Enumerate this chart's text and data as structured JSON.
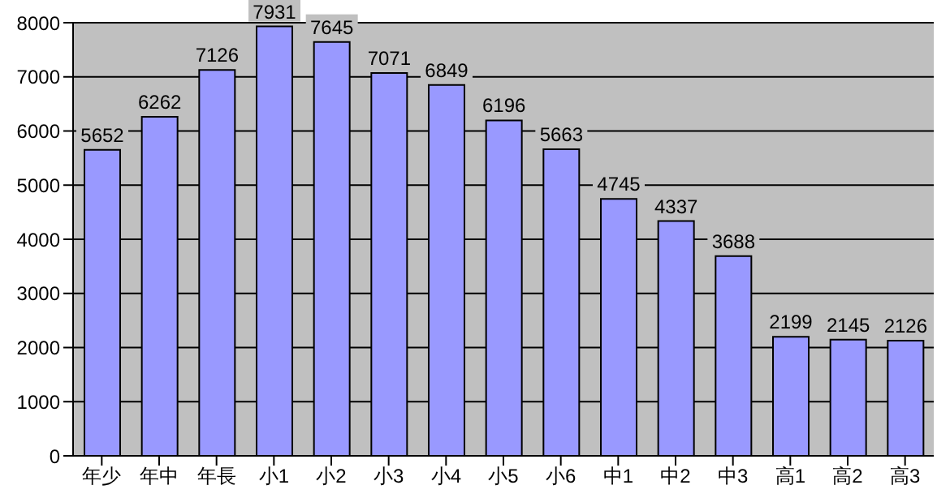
{
  "chart_data": {
    "type": "bar",
    "categories": [
      "年少",
      "年中",
      "年長",
      "小1",
      "小2",
      "小3",
      "小4",
      "小5",
      "小6",
      "中1",
      "中2",
      "中3",
      "高1",
      "高2",
      "高3"
    ],
    "values": [
      5652,
      6262,
      7126,
      7931,
      7645,
      7071,
      6849,
      6196,
      5663,
      4745,
      4337,
      3688,
      2199,
      2145,
      2126
    ],
    "color": "#9999ff",
    "ylim": [
      0,
      8000
    ],
    "yticks": [
      0,
      1000,
      2000,
      3000,
      4000,
      5000,
      6000,
      7000,
      8000
    ],
    "grid": "y",
    "data_labels": true
  }
}
